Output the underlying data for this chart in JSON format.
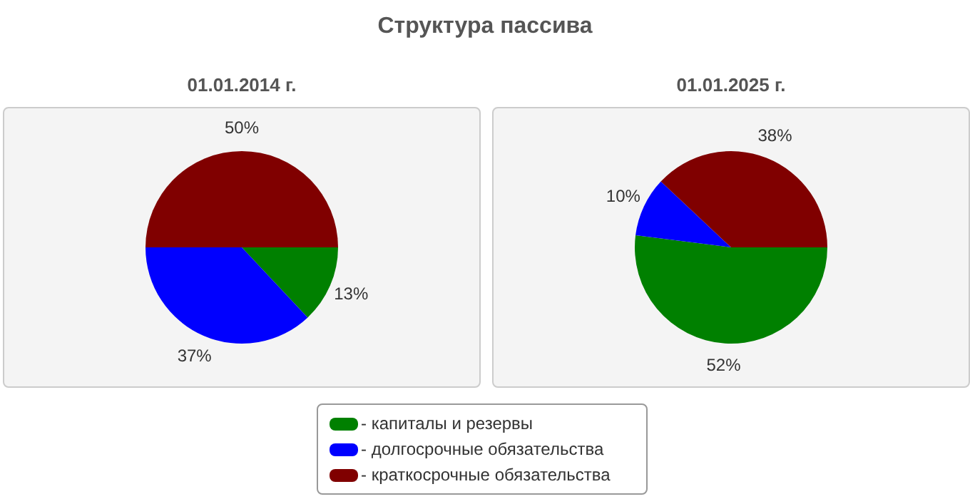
{
  "chart_data": [
    {
      "type": "pie",
      "title": "Структура пассива",
      "subtitle": "01.01.2014 г.",
      "categories": [
        "- капиталы и резервы",
        "- долгосрочные обязательства",
        "- краткосрочные обязательства"
      ],
      "values": [
        13,
        37,
        50
      ],
      "value_labels": [
        "13%",
        "37%",
        "50%"
      ],
      "colors": [
        "#008000",
        "#0000ff",
        "#800000"
      ],
      "legend": "bottom"
    },
    {
      "type": "pie",
      "subtitle": "01.01.2025 г.",
      "categories": [
        null,
        null,
        null
      ],
      "values": [
        52,
        10,
        38
      ],
      "value_labels": [
        "52%",
        "10%",
        "38%"
      ],
      "colors": [
        "#008000",
        "#0000ff",
        "#800000"
      ],
      "legend": false
    }
  ]
}
